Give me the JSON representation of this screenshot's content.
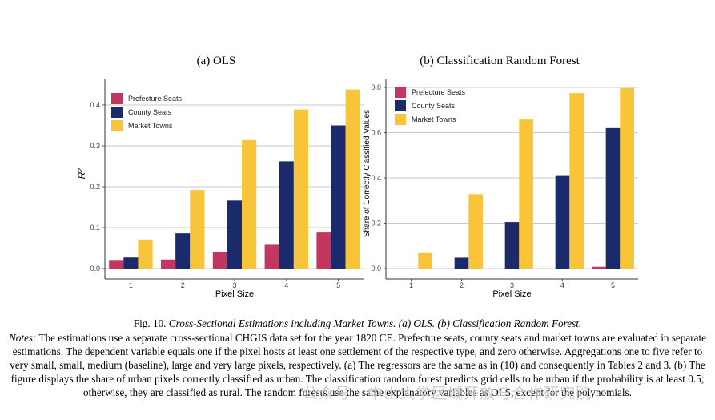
{
  "chart_data": [
    {
      "type": "bar",
      "title": "(a) OLS",
      "xlabel": "Pixel Size",
      "ylabel": "R²",
      "categories": [
        "1",
        "2",
        "3",
        "4",
        "5"
      ],
      "ylim": [
        0,
        0.45
      ],
      "yticks": [
        "0.0",
        "0.1",
        "0.2",
        "0.3",
        "0.4"
      ],
      "ytick_values": [
        0,
        0.1,
        0.2,
        0.3,
        0.4
      ],
      "grid": true,
      "legend_position": "top-left",
      "series": [
        {
          "name": "Prefecture Seats",
          "color": "#c2375f",
          "values": [
            0.019,
            0.022,
            0.041,
            0.058,
            0.088
          ]
        },
        {
          "name": "County Seats",
          "color": "#1b2a6b",
          "values": [
            0.027,
            0.086,
            0.166,
            0.262,
            0.35
          ]
        },
        {
          "name": "Market Towns",
          "color": "#f8c43a",
          "values": [
            0.071,
            0.192,
            0.314,
            0.389,
            0.438
          ]
        }
      ]
    },
    {
      "type": "bar",
      "title": "(b) Classification Random Forest",
      "xlabel": "Pixel Size",
      "ylabel": "Share of Correctly Classified Values",
      "categories": [
        "1",
        "2",
        "3",
        "4",
        "5"
      ],
      "ylim": [
        0,
        0.83
      ],
      "yticks": [
        "0.0",
        "0.2",
        "0.4",
        "0.6",
        "0.8"
      ],
      "ytick_values": [
        0,
        0.2,
        0.4,
        0.6,
        0.8
      ],
      "grid": true,
      "legend_position": "top-left",
      "series": [
        {
          "name": "Prefecture Seats",
          "color": "#c2375f",
          "values": [
            0,
            0,
            0,
            0,
            0.008
          ]
        },
        {
          "name": "County Seats",
          "color": "#1b2a6b",
          "values": [
            0,
            0.048,
            0.205,
            0.412,
            0.62
          ]
        },
        {
          "name": "Market Towns",
          "color": "#f8c43a",
          "values": [
            0.068,
            0.328,
            0.658,
            0.775,
            0.797
          ]
        }
      ]
    }
  ],
  "caption": {
    "label": "Fig. 10.",
    "text": "Cross-Sectional Estimations including Market Towns. (a) OLS. (b) Classification Random Forest."
  },
  "notes": {
    "label": "Notes:",
    "text": "The estimations use a separate cross-sectional CHGIS data set for the year 1820 CE. Prefecture seats, county seats and market towns are evaluated in separate estimations. The dependent variable equals one if the pixel hosts at least one settlement of the respective type, and zero otherwise. Aggregations one to five refer to very small, small, medium (baseline), large and very large pixels, respectively. (a) The regressors are the same as in (10) and consequently in Tables 2 and 3. (b) The figure displays the share of urban pixels correctly classified as urban. The classification random forest predicts grid cells to be urban if the probability is at least 0.5; otherwise, they are classified as rural. The random forests use the same explanatory variables as OLS, except for the polynomials."
  },
  "watermark": {
    "text": "公众号 · 中山大学区域开放与合作研究院"
  }
}
